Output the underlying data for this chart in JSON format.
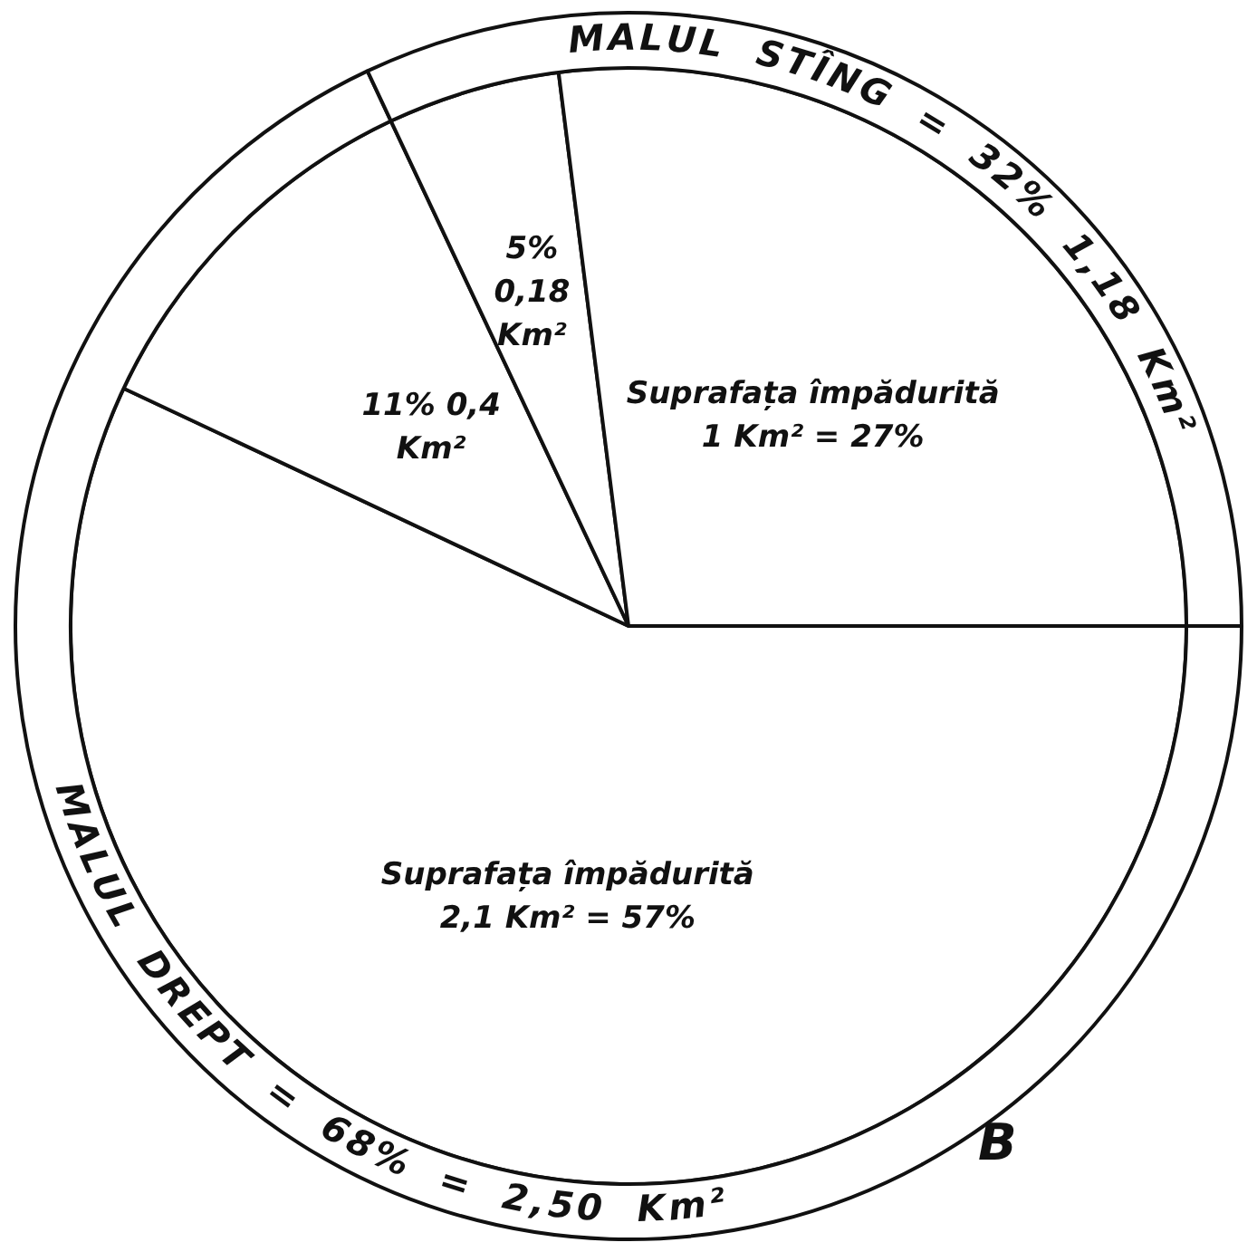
{
  "chart_data": [
    {
      "type": "pie",
      "categories": [
        "Suprafața împădurită",
        null,
        null,
        "Suprafața împădurită"
      ],
      "values": [
        57,
        11,
        5,
        27
      ],
      "colors": [
        "#ffffff",
        "#ffffff",
        "#ffffff",
        "#ffffff"
      ],
      "value_labels": [
        "2,1 Km² = 57%",
        "11% 0,4 Km²",
        "5% 0,18 Km²",
        "1 Km² = 27%"
      ],
      "legend": false
    },
    {
      "type": "donut",
      "categories": [
        "MALUL DREPT",
        "MALUL STÎNG"
      ],
      "values": [
        68,
        32
      ],
      "colors": [
        "#ffffff",
        "#ffffff"
      ],
      "value_labels": [
        "= 68% = 2,50 Km²",
        "= 32% 1,18 Km²"
      ],
      "annotations": [
        "B"
      ],
      "legend": false
    }
  ]
}
